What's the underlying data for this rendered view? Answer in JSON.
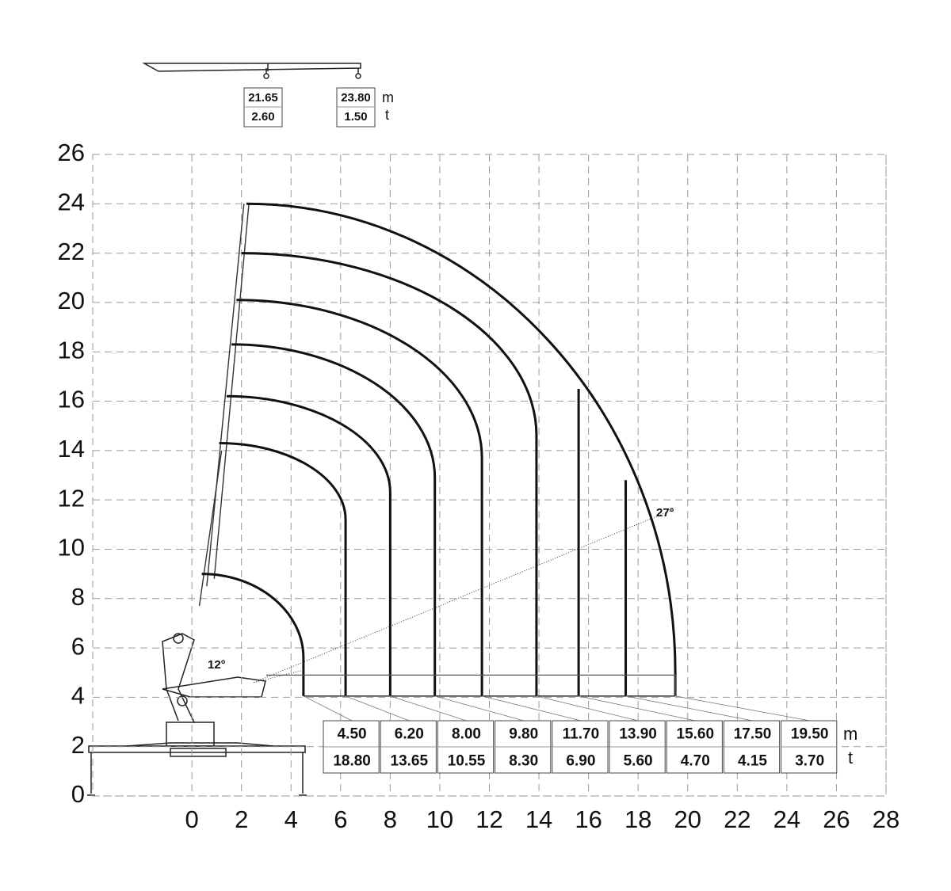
{
  "axes": {
    "xlim": [
      -4,
      28
    ],
    "xticks": [
      0,
      2,
      4,
      6,
      8,
      10,
      12,
      14,
      16,
      18,
      20,
      22,
      24,
      26,
      28
    ],
    "ylim": [
      0,
      26
    ],
    "yticks": [
      0,
      2,
      4,
      6,
      8,
      10,
      12,
      14,
      16,
      18,
      20,
      22,
      24,
      26
    ]
  },
  "extension_table": {
    "reach": [
      "21.65",
      "23.80"
    ],
    "load": [
      "2.60",
      "1.50"
    ],
    "reach_unit": "m",
    "load_unit": "t"
  },
  "load_table": {
    "reach": [
      "4.50",
      "6.20",
      "8.00",
      "9.80",
      "11.70",
      "13.90",
      "15.60",
      "17.50",
      "19.50"
    ],
    "load": [
      "18.80",
      "13.65",
      "10.55",
      "8.30",
      "6.90",
      "5.60",
      "4.70",
      "4.15",
      "3.70"
    ],
    "reach_unit": "m",
    "load_unit": "t"
  },
  "angles": [
    "12°",
    "27°"
  ]
}
